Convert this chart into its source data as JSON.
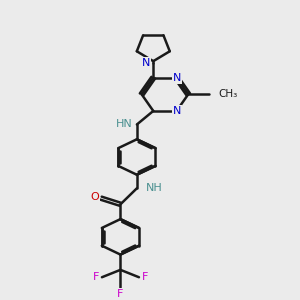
{
  "background_color": "#ebebeb",
  "bond_color": "#1a1a1a",
  "N_color": "#0000cc",
  "NH_color": "#4a9090",
  "O_color": "#cc0000",
  "F_color": "#cc00cc",
  "bond_width": 1.8,
  "fig_w": 3.0,
  "fig_h": 3.0,
  "dpi": 100,
  "xlim": [
    0,
    10
  ],
  "ylim": [
    0,
    12
  ]
}
